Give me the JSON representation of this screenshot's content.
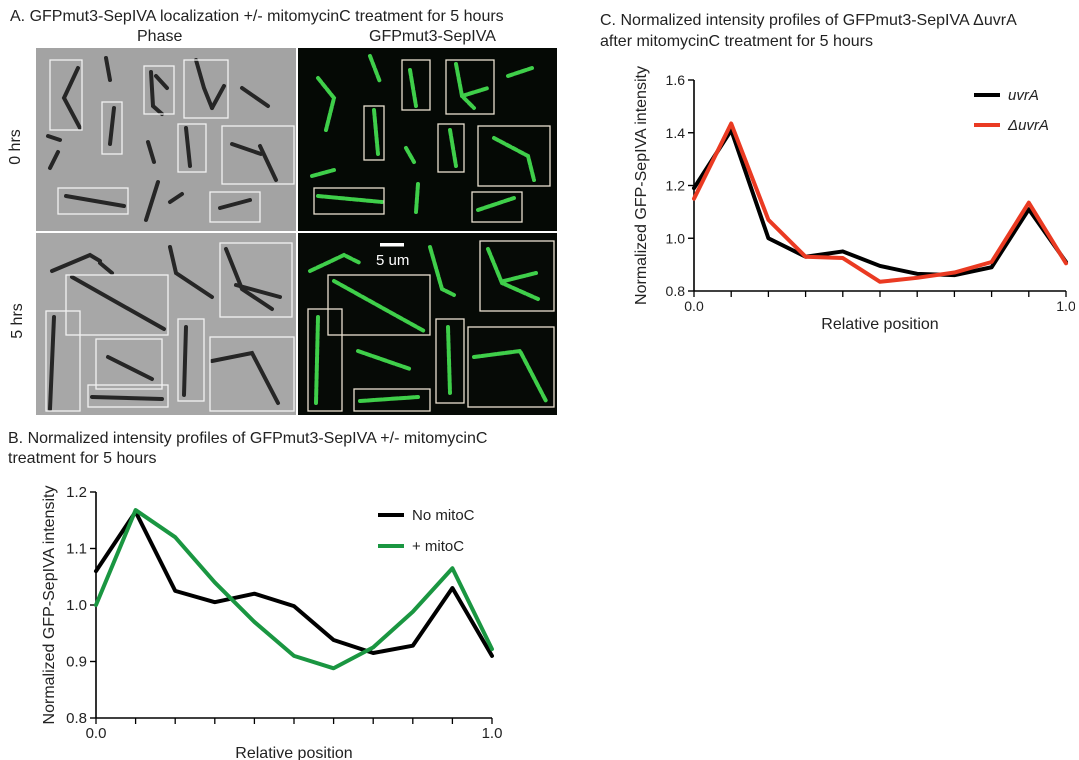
{
  "panel_a": {
    "title": "A. GFPmut3-SepIVA localization +/- mitomycinC treatment for 5 hours",
    "col_phase": "Phase",
    "col_gfp": "GFPmut3-SepIVA",
    "row_0": "0 hrs",
    "row_5": "5 hrs",
    "scale_bar": "5 um",
    "colors": {
      "phase_bg": "#9e9e9e",
      "gfp_bg": "#060a06",
      "gfp_cell": "#3fcf4a",
      "phase_cell": "#2b2b2b"
    }
  },
  "panel_b": {
    "title_line1": "B. Normalized intensity profiles of GFPmut3-SepIVA +/- mitomycinC",
    "title_line2": "treatment for 5 hours"
  },
  "panel_c": {
    "title_line1": "C. Normalized intensity profiles of GFPmut3-SepIVA ΔuvrA",
    "title_line2": "after mitomycinC treatment for 5 hours"
  },
  "chart_data": [
    {
      "id": "B",
      "type": "line",
      "title": "",
      "xlabel": "Relative position",
      "ylabel": "Normalized GFP-SepIVA intensity",
      "x": [
        0.0,
        0.1,
        0.2,
        0.3,
        0.4,
        0.5,
        0.6,
        0.7,
        0.8,
        0.9,
        1.0
      ],
      "xlim": [
        0.0,
        1.0
      ],
      "ylim": [
        0.8,
        1.2
      ],
      "x_ticks": [
        "0.0",
        "1.0"
      ],
      "y_ticks": [
        "0.8",
        "0.9",
        "1.0",
        "1.1",
        "1.2"
      ],
      "legend": "top-right",
      "series": [
        {
          "name": "No mitoC",
          "color": "#000000",
          "values": [
            1.06,
            1.165,
            1.025,
            1.005,
            1.02,
            0.998,
            0.938,
            0.915,
            0.928,
            1.03,
            0.91
          ]
        },
        {
          "name": "+ mitoC",
          "color": "#1a9641",
          "values": [
            1.0,
            1.168,
            1.12,
            1.04,
            0.97,
            0.91,
            0.888,
            0.925,
            0.988,
            1.065,
            0.922
          ]
        }
      ]
    },
    {
      "id": "C",
      "type": "line",
      "title": "",
      "xlabel": "Relative position",
      "ylabel": "Normalized GFP-SepIVA intensity",
      "x": [
        0.0,
        0.1,
        0.2,
        0.3,
        0.4,
        0.5,
        0.6,
        0.7,
        0.8,
        0.9,
        1.0
      ],
      "xlim": [
        0.0,
        1.0
      ],
      "ylim": [
        0.8,
        1.6
      ],
      "x_ticks": [
        "0.0",
        "1.0"
      ],
      "y_ticks": [
        "0.8",
        "1.0",
        "1.2",
        "1.4",
        "1.6"
      ],
      "legend": "top-right",
      "series": [
        {
          "name": "uvrA",
          "color": "#000000",
          "values": [
            1.19,
            1.41,
            1.0,
            0.93,
            0.95,
            0.895,
            0.865,
            0.86,
            0.89,
            1.11,
            0.91
          ]
        },
        {
          "name": "ΔuvrA",
          "color": "#ea3a22",
          "values": [
            1.15,
            1.435,
            1.07,
            0.93,
            0.925,
            0.835,
            0.85,
            0.87,
            0.91,
            1.135,
            0.905
          ]
        }
      ]
    }
  ]
}
